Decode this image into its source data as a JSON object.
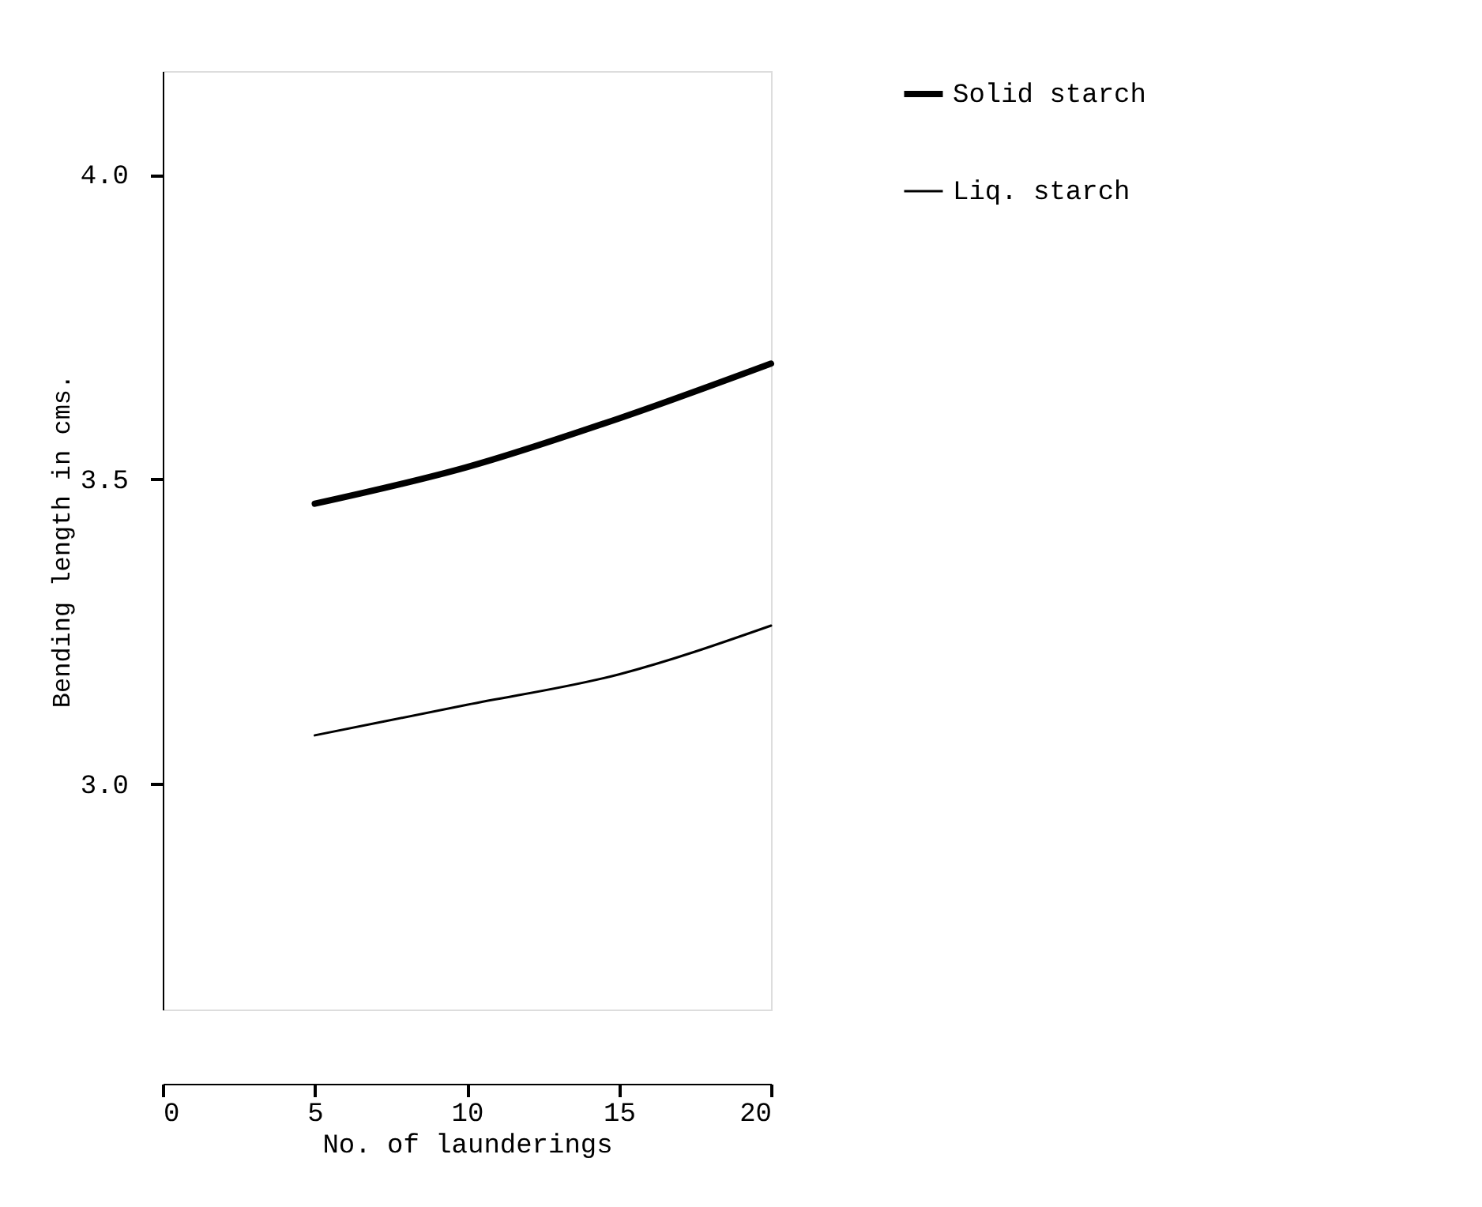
{
  "chart_data": {
    "type": "line",
    "xlabel": "No. of launderings",
    "ylabel": "Bending length in cms.",
    "x": [
      5,
      10,
      15,
      20
    ],
    "series": [
      {
        "name": "Solid starch",
        "color": "#000000",
        "values": [
          3.46,
          3.52,
          3.6,
          3.69
        ]
      },
      {
        "name": "Liq. starch",
        "color": "#000000",
        "values": [
          3.08,
          3.13,
          3.18,
          3.26
        ]
      }
    ],
    "xlim": [
      0,
      20
    ],
    "xticks": [
      0,
      5,
      10,
      15,
      20
    ],
    "ylim": [
      2.63,
      4.17
    ],
    "yticks": [
      {
        "value": 3,
        "label": "3.0"
      },
      {
        "value": 3.5,
        "label": "3.5"
      },
      {
        "value": 4,
        "label": "4.0"
      }
    ],
    "grid": false,
    "legend": "right",
    "line_style": "solid",
    "marker": "none"
  }
}
